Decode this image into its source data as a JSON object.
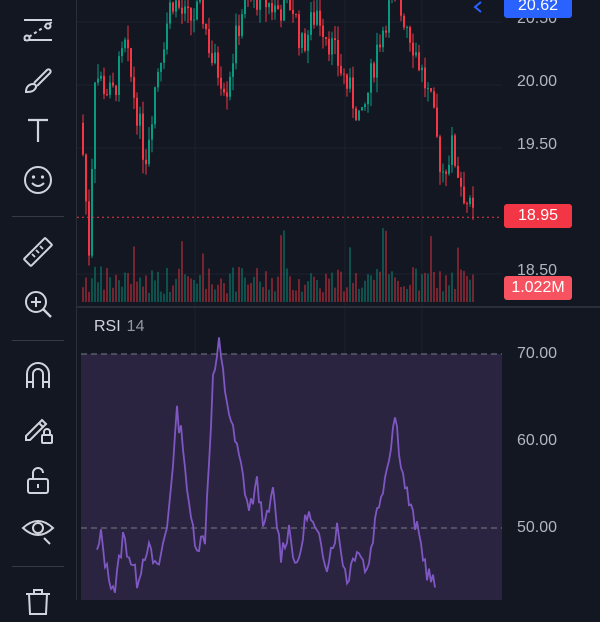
{
  "toolbar": {
    "tools": [
      {
        "name": "trend-line-tool-icon"
      },
      {
        "name": "brush-tool-icon"
      },
      {
        "name": "text-tool-icon"
      },
      {
        "name": "emoji-tool-icon"
      },
      {
        "name": "measure-ruler-icon"
      },
      {
        "name": "zoom-in-icon"
      },
      {
        "name": "magnet-icon"
      },
      {
        "name": "lock-drawing-icon"
      },
      {
        "name": "unlock-icon"
      },
      {
        "name": "eye-icon"
      },
      {
        "name": "trash-icon"
      }
    ]
  },
  "price_axis": {
    "ticks": [
      "20.50",
      "20.00",
      "19.50",
      "18.50"
    ],
    "last_price_tag": {
      "label": "18.95",
      "color": "#f23645"
    },
    "top_price_tag": {
      "label": "20.62",
      "color": "#2962ff"
    },
    "volume_tag": {
      "label": "1.022M",
      "color": "#f7525f"
    }
  },
  "rsi": {
    "title": "RSI",
    "length": "14",
    "ticks": [
      "70.00",
      "60.00",
      "50.00"
    ],
    "line_color": "#7e57c2",
    "band_color": "#2a2440"
  },
  "colors": {
    "up": "#089981",
    "down": "#f23645",
    "background": "#131722",
    "grid": "#1e222d"
  },
  "chart_data": {
    "type": "candlestick",
    "y_range": [
      18.35,
      20.7
    ],
    "last_price": 18.95,
    "rsi_range": [
      43,
      71
    ],
    "rsi_levels": [
      70,
      50
    ]
  }
}
